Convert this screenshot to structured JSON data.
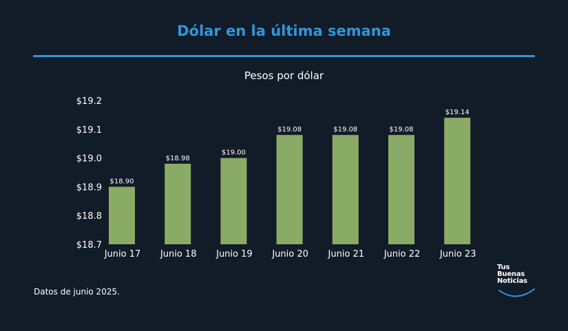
{
  "page": {
    "title": "Dólar en la última semana",
    "subtitle": "Pesos por dólar",
    "footnote": "Datos de junio 2025.",
    "logo": {
      "line1": "Tus",
      "line2": "Buenas",
      "line3": "Noticias"
    }
  },
  "colors": {
    "background": "#121b28",
    "accent": "#2e98d8",
    "bar": "#8aab66"
  },
  "chart_data": {
    "type": "bar",
    "title": "Pesos por dólar",
    "xlabel": "",
    "ylabel": "",
    "categories": [
      "Junio 17",
      "Junio 18",
      "Junio 19",
      "Junio 20",
      "Junio 21",
      "Junio 22",
      "Junio 23"
    ],
    "values": [
      18.9,
      18.98,
      19.0,
      19.08,
      19.08,
      19.08,
      19.14
    ],
    "value_labels": [
      "$18.90",
      "$18.98",
      "$19.00",
      "$19.08",
      "$19.08",
      "$19.08",
      "$19.14"
    ],
    "ylim": [
      18.7,
      19.2
    ],
    "yticks": [
      18.7,
      18.8,
      18.9,
      19.0,
      19.1,
      19.2
    ],
    "ytick_labels": [
      "$18.7",
      "$18.8",
      "$18.9",
      "$19.0",
      "$19.1",
      "$19.2"
    ],
    "grid": false
  }
}
